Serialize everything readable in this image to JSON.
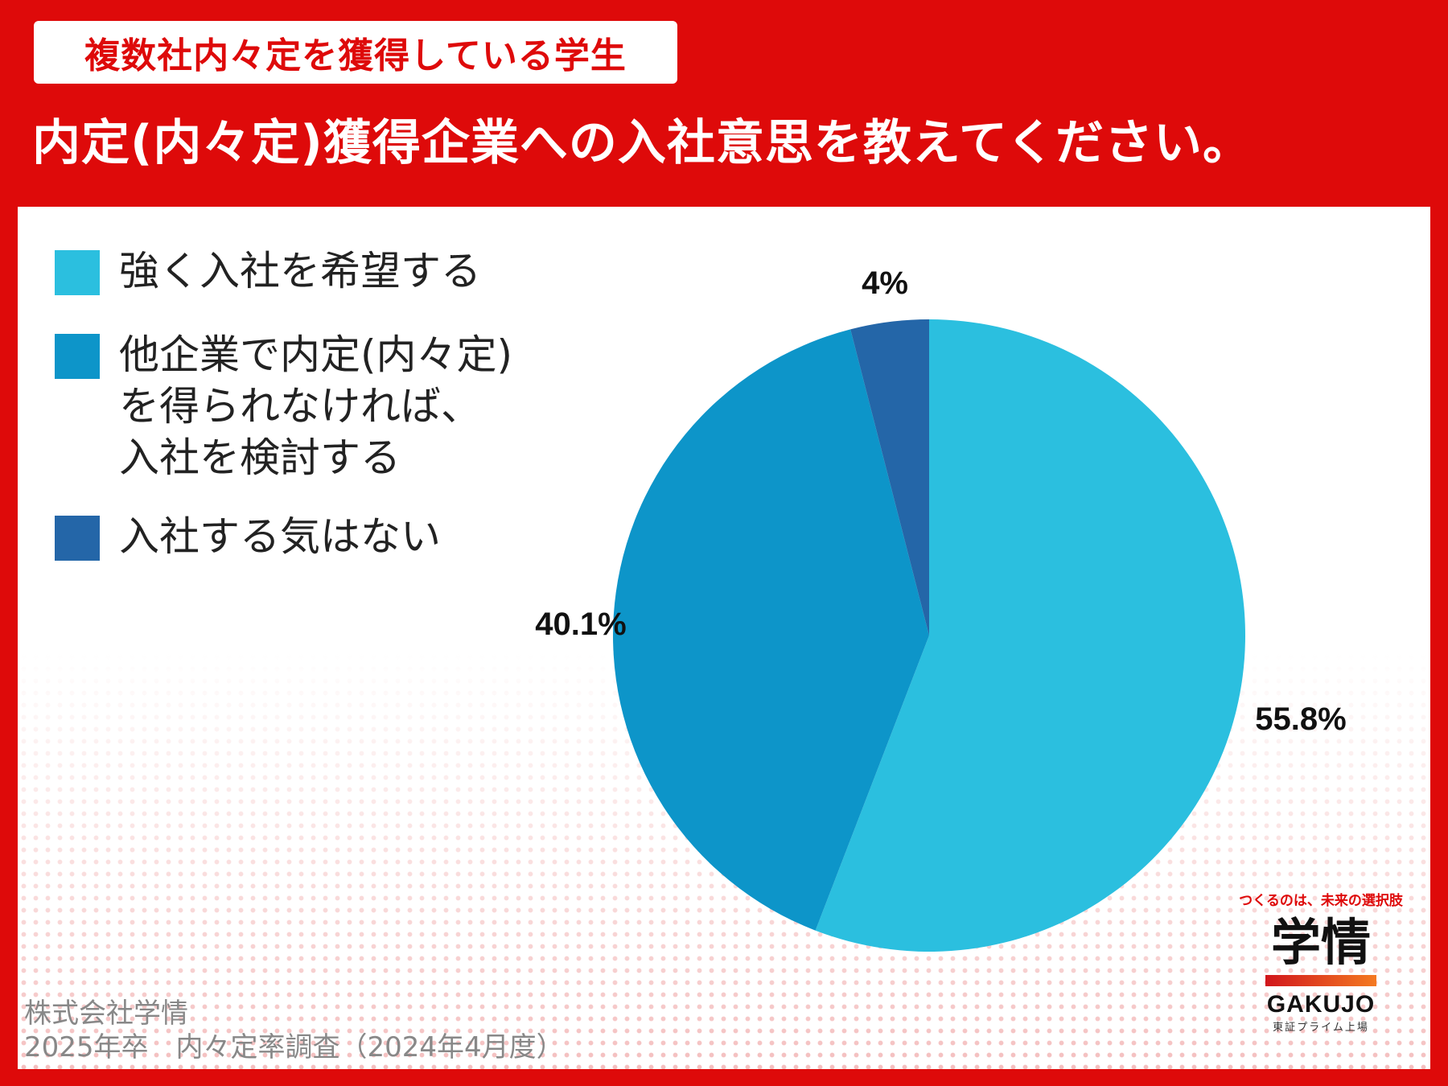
{
  "header": {
    "badge": "複数社内々定を獲得している学生",
    "title": "内定(内々定)獲得企業への入社意思を教えてください。"
  },
  "chart_data": {
    "type": "pie",
    "categories": [
      "強く入社を希望する",
      "他企業で内定(内々定)\nを得られなければ、\n入社を検討する",
      "入社する気はない"
    ],
    "values": [
      55.8,
      40.1,
      4
    ],
    "value_labels": [
      "55.8%",
      "40.1%",
      "4%"
    ],
    "colors": [
      "#2bbfdf",
      "#0d95c9",
      "#2466a8"
    ],
    "legend_position": "top-left"
  },
  "footer": {
    "line1": "株式会社学情",
    "line2": "2025年卒　内々定率調査（2024年4月度）"
  },
  "logo": {
    "tagline": "つくるのは、未来の選択肢",
    "mark": "学情",
    "name": "GAKUJO",
    "sub": "東証プライム上場"
  }
}
